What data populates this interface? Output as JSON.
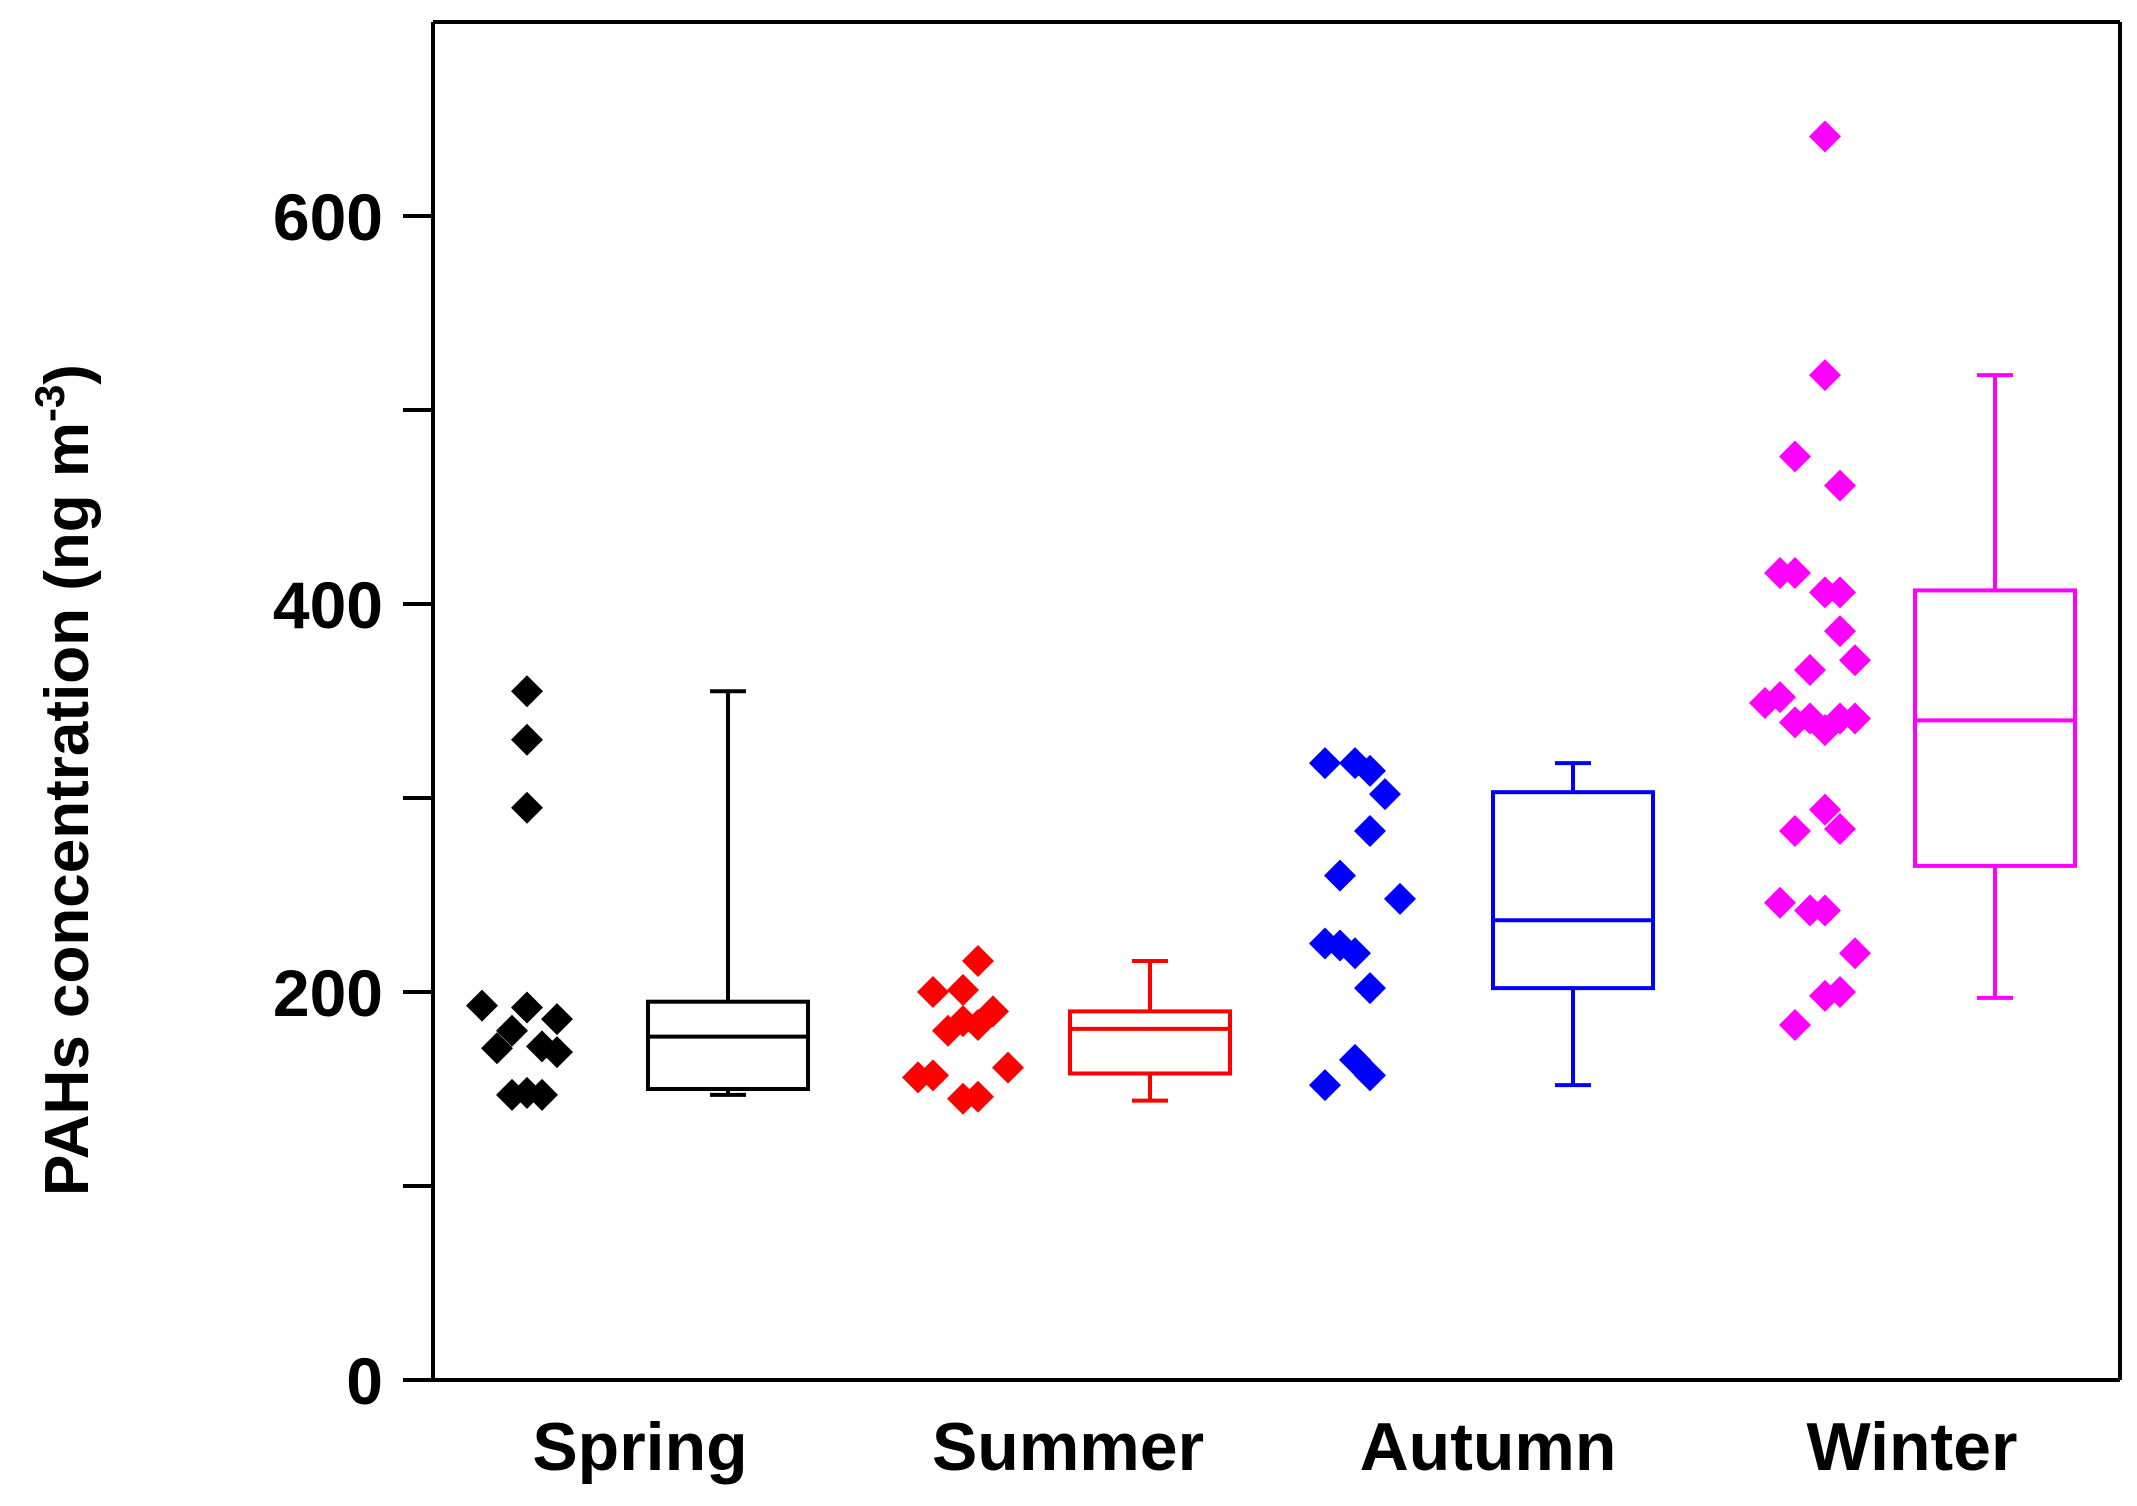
{
  "chart_data": {
    "type": "box",
    "title": "",
    "xlabel": "",
    "ylabel": "PAHs concentration (ng m",
    "ylabel_sup": "-3",
    "ylabel_close": ")",
    "ylim": [
      0,
      700
    ],
    "yticks": [
      0,
      100,
      200,
      300,
      400,
      500,
      600
    ],
    "ytick_labels": [
      "0",
      "",
      "200",
      "",
      "400",
      "",
      "600"
    ],
    "categories": [
      "Spring",
      "Summer",
      "Autumn",
      "Winter"
    ],
    "series": [
      {
        "name": "Spring",
        "color": "#000000",
        "points": [
          {
            "offset": -3,
            "value": 355
          },
          {
            "offset": -3,
            "value": 330
          },
          {
            "offset": -3,
            "value": 295
          },
          {
            "offset": -6,
            "value": 193
          },
          {
            "offset": -4,
            "value": 180
          },
          {
            "offset": -5,
            "value": 171
          },
          {
            "offset": -3,
            "value": 192
          },
          {
            "offset": -1,
            "value": 186
          },
          {
            "offset": -2,
            "value": 172
          },
          {
            "offset": -1,
            "value": 169
          },
          {
            "offset": -4,
            "value": 147
          },
          {
            "offset": -3,
            "value": 148
          },
          {
            "offset": -2,
            "value": 147
          }
        ],
        "box": {
          "min": 147,
          "q1": 150,
          "median": 177,
          "q3": 195,
          "max": 355
        }
      },
      {
        "name": "Summer",
        "color": "#ff0000",
        "points": [
          {
            "offset": -4,
            "value": 200
          },
          {
            "offset": -1,
            "value": 216
          },
          {
            "offset": -2,
            "value": 201
          },
          {
            "offset": -3,
            "value": 180
          },
          {
            "offset": -2,
            "value": 185
          },
          {
            "offset": -1,
            "value": 183
          },
          {
            "offset": 0,
            "value": 190
          },
          {
            "offset": -5,
            "value": 156
          },
          {
            "offset": -4,
            "value": 157
          },
          {
            "offset": -2,
            "value": 145
          },
          {
            "offset": -1,
            "value": 146
          },
          {
            "offset": 1,
            "value": 161
          }
        ],
        "box": {
          "min": 144,
          "q1": 158,
          "median": 181,
          "q3": 190,
          "max": 216
        }
      },
      {
        "name": "Autumn",
        "color": "#0000ff",
        "points": [
          {
            "offset": -5,
            "value": 318
          },
          {
            "offset": -3,
            "value": 318
          },
          {
            "offset": -2,
            "value": 314
          },
          {
            "offset": -1,
            "value": 302
          },
          {
            "offset": -2,
            "value": 283
          },
          {
            "offset": -4,
            "value": 260
          },
          {
            "offset": 0,
            "value": 248
          },
          {
            "offset": -5,
            "value": 225
          },
          {
            "offset": -4,
            "value": 224
          },
          {
            "offset": -3,
            "value": 220
          },
          {
            "offset": -2,
            "value": 202
          },
          {
            "offset": -3,
            "value": 165
          },
          {
            "offset": -5,
            "value": 152
          },
          {
            "offset": -2,
            "value": 157
          }
        ],
        "box": {
          "min": 152,
          "q1": 202,
          "median": 237,
          "q3": 303,
          "max": 318
        }
      },
      {
        "name": "Winter",
        "color": "#ff00ff",
        "points": [
          {
            "offset": 0,
            "value": 641
          },
          {
            "offset": 0,
            "value": 518
          },
          {
            "offset": -2,
            "value": 476
          },
          {
            "offset": 1,
            "value": 461
          },
          {
            "offset": -3,
            "value": 416
          },
          {
            "offset": -2,
            "value": 416
          },
          {
            "offset": 0,
            "value": 406
          },
          {
            "offset": 1,
            "value": 406
          },
          {
            "offset": 1,
            "value": 386
          },
          {
            "offset": 2,
            "value": 371
          },
          {
            "offset": -1,
            "value": 366
          },
          {
            "offset": -4,
            "value": 349
          },
          {
            "offset": -3,
            "value": 352
          },
          {
            "offset": -2,
            "value": 339
          },
          {
            "offset": -1,
            "value": 341
          },
          {
            "offset": 0,
            "value": 335
          },
          {
            "offset": 1,
            "value": 341
          },
          {
            "offset": 2,
            "value": 341
          },
          {
            "offset": 0,
            "value": 294
          },
          {
            "offset": -2,
            "value": 283
          },
          {
            "offset": 1,
            "value": 284
          },
          {
            "offset": -3,
            "value": 246
          },
          {
            "offset": -1,
            "value": 242
          },
          {
            "offset": 0,
            "value": 242
          },
          {
            "offset": 2,
            "value": 220
          },
          {
            "offset": 0,
            "value": 198
          },
          {
            "offset": 1,
            "value": 200
          },
          {
            "offset": -2,
            "value": 183
          }
        ],
        "box": {
          "min": 197,
          "q1": 265,
          "median": 340,
          "q3": 407,
          "max": 518
        }
      }
    ]
  }
}
